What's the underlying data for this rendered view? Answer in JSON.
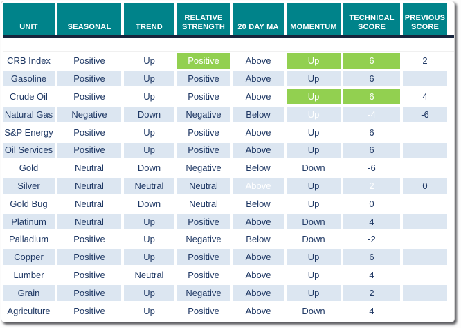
{
  "colors": {
    "header_teal": "#00838A",
    "highlight_green": "#92D050",
    "row_stripe_blue": "#DCE6F1",
    "text_navy": "#1F3864",
    "frame_dark_navy": "#17243D",
    "highlight_text": "#FFFFFF"
  },
  "chart_data": {
    "type": "table",
    "title": "",
    "columns": [
      "UNIT",
      "SEASONAL",
      "TREND",
      "RELATIVE STRENGTH",
      "20 DAY MA",
      "MOMENTUM",
      "TECHNICAL SCORE",
      "PREVIOUS SCORE"
    ],
    "column_keys": [
      "unit",
      "seasonal",
      "trend",
      "relative-strength",
      "20-day-ma",
      "momentum",
      "technical-score",
      "previous-score"
    ],
    "legend": "green highlight marks changed/notable cells",
    "rows": [
      {
        "cells": [
          "CRB Index",
          "Positive",
          "Up",
          "Positive",
          "Above",
          "Up",
          "6",
          "2"
        ],
        "highlighted_cells": [
          3,
          5,
          6
        ]
      },
      {
        "cells": [
          "Gasoline",
          "Positive",
          "Up",
          "Positive",
          "Above",
          "Up",
          "6",
          ""
        ],
        "highlighted_cells": []
      },
      {
        "cells": [
          "Crude Oil",
          "Positive",
          "Up",
          "Positive",
          "Above",
          "Up",
          "6",
          "4"
        ],
        "highlighted_cells": [
          5,
          6
        ]
      },
      {
        "cells": [
          "Natural Gas",
          "Negative",
          "Down",
          "Negative",
          "Below",
          "Up",
          "-4",
          "-6"
        ],
        "highlighted_cells": [
          5,
          6
        ]
      },
      {
        "cells": [
          "S&P Energy",
          "Positive",
          "Up",
          "Positive",
          "Above",
          "Up",
          "6",
          ""
        ],
        "highlighted_cells": []
      },
      {
        "cells": [
          "Oil Services",
          "Positive",
          "Up",
          "Positive",
          "Above",
          "Up",
          "6",
          ""
        ],
        "highlighted_cells": []
      },
      {
        "cells": [
          "Gold",
          "Neutral",
          "Down",
          "Negative",
          "Below",
          "Down",
          "-6",
          ""
        ],
        "highlighted_cells": []
      },
      {
        "cells": [
          "Silver",
          "Neutral",
          "Neutral",
          "Neutral",
          "Above",
          "Up",
          "2",
          "0"
        ],
        "highlighted_cells": [
          4,
          6
        ]
      },
      {
        "cells": [
          "Gold Bug",
          "Neutral",
          "Down",
          "Neutral",
          "Below",
          "Up",
          "0",
          ""
        ],
        "highlighted_cells": []
      },
      {
        "cells": [
          "Platinum",
          "Neutral",
          "Up",
          "Positive",
          "Above",
          "Down",
          "4",
          ""
        ],
        "highlighted_cells": []
      },
      {
        "cells": [
          "Palladium",
          "Positive",
          "Up",
          "Negative",
          "Below",
          "Down",
          "-2",
          ""
        ],
        "highlighted_cells": []
      },
      {
        "cells": [
          "Copper",
          "Positive",
          "Up",
          "Positive",
          "Above",
          "Up",
          "6",
          ""
        ],
        "highlighted_cells": []
      },
      {
        "cells": [
          "Lumber",
          "Positive",
          "Neutral",
          "Positive",
          "Above",
          "Up",
          "4",
          ""
        ],
        "highlighted_cells": []
      },
      {
        "cells": [
          "Grain",
          "Positive",
          "Up",
          "Negative",
          "Above",
          "Up",
          "2",
          ""
        ],
        "highlighted_cells": []
      },
      {
        "cells": [
          "Agriculture",
          "Positive",
          "Up",
          "Positive",
          "Above",
          "Down",
          "4",
          ""
        ],
        "highlighted_cells": []
      }
    ]
  }
}
